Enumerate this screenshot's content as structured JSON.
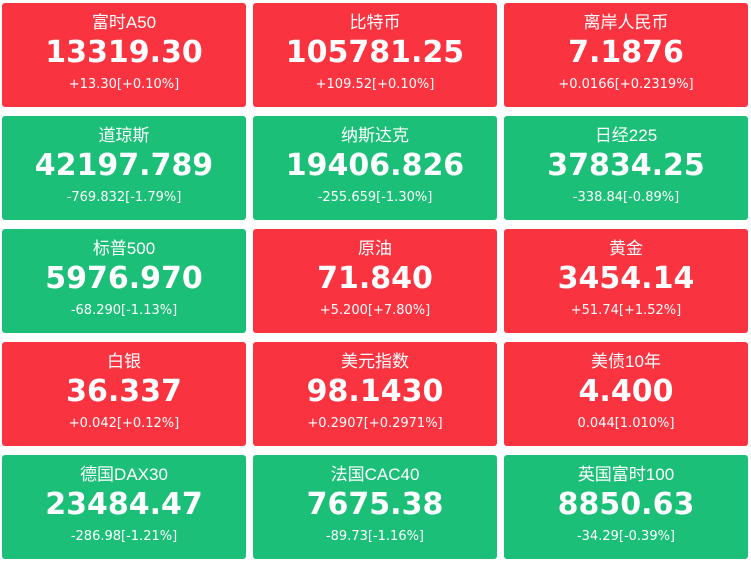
{
  "colors": {
    "up": "#fa3341",
    "down": "#1bbf78",
    "text": "#ffffff"
  },
  "tiles": [
    {
      "name": "富时A50",
      "price": "13319.30",
      "change": "+13.30[+0.10%]",
      "direction": "up"
    },
    {
      "name": "比特币",
      "price": "105781.25",
      "change": "+109.52[+0.10%]",
      "direction": "up"
    },
    {
      "name": "离岸人民币",
      "price": "7.1876",
      "change": "+0.0166[+0.2319%]",
      "direction": "up"
    },
    {
      "name": "道琼斯",
      "price": "42197.789",
      "change": "-769.832[-1.79%]",
      "direction": "down"
    },
    {
      "name": "纳斯达克",
      "price": "19406.826",
      "change": "-255.659[-1.30%]",
      "direction": "down"
    },
    {
      "name": "日经225",
      "price": "37834.25",
      "change": "-338.84[-0.89%]",
      "direction": "down"
    },
    {
      "name": "标普500",
      "price": "5976.970",
      "change": "-68.290[-1.13%]",
      "direction": "down"
    },
    {
      "name": "原油",
      "price": "71.840",
      "change": "+5.200[+7.80%]",
      "direction": "up"
    },
    {
      "name": "黄金",
      "price": "3454.14",
      "change": "+51.74[+1.52%]",
      "direction": "up"
    },
    {
      "name": "白银",
      "price": "36.337",
      "change": "+0.042[+0.12%]",
      "direction": "up"
    },
    {
      "name": "美元指数",
      "price": "98.1430",
      "change": "+0.2907[+0.2971%]",
      "direction": "up"
    },
    {
      "name": "美债10年",
      "price": "4.400",
      "change": "0.044[1.010%]",
      "direction": "up"
    },
    {
      "name": "德国DAX30",
      "price": "23484.47",
      "change": "-286.98[-1.21%]",
      "direction": "down"
    },
    {
      "name": "法国CAC40",
      "price": "7675.38",
      "change": "-89.73[-1.16%]",
      "direction": "down"
    },
    {
      "name": "英国富时100",
      "price": "8850.63",
      "change": "-34.29[-0.39%]",
      "direction": "down"
    }
  ]
}
